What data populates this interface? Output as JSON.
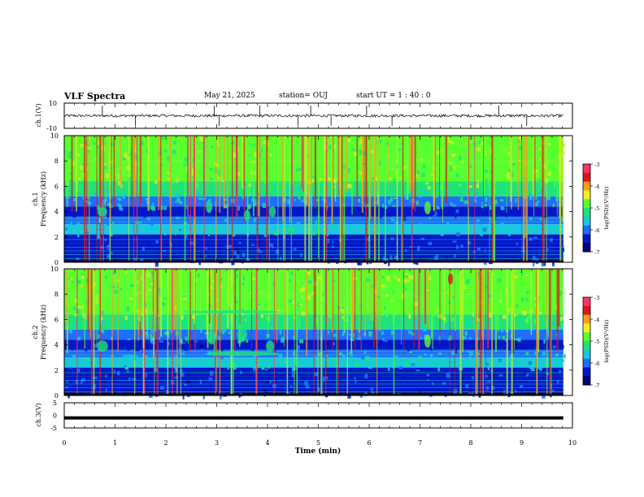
{
  "header": {
    "title": "VLF Spectra",
    "date": "May 21, 2025",
    "station": "station= OUJ",
    "start_ut": "start  UT =  1 : 40 : 0"
  },
  "colors": {
    "cmap": [
      "#00007a",
      "#0018c8",
      "#1e6eff",
      "#17c8e0",
      "#1ee37a",
      "#5aff2e",
      "#d6f020",
      "#ff9a1c",
      "#e01515",
      "#ff2a55"
    ],
    "line": "#000000",
    "background": "#ffffff"
  },
  "chart_data": [
    {
      "type": "line",
      "id": "ch1_waveform",
      "ylabel": "ch.1(V)",
      "ylim": [
        -10,
        10
      ],
      "yticks": [
        10,
        -10
      ],
      "xlim": [
        0,
        10
      ],
      "baseline": 0,
      "spikes_min": [
        0.75,
        1.4,
        2.95,
        3.05,
        3.85,
        4.6,
        4.85,
        5.25,
        5.95,
        6.45,
        8.55,
        9.1
      ]
    },
    {
      "type": "heatmap",
      "id": "ch1_spectrogram",
      "ylabel": "ch.1\nFrequency (kHz)",
      "ylim": [
        0,
        10
      ],
      "yticks": [
        0,
        2,
        4,
        6,
        8,
        10
      ],
      "xlim": [
        0,
        10
      ],
      "data_end_min": 9.82,
      "colorbar": {
        "label": "log(PSD)(V²/Hz)",
        "range": [
          -7,
          -3
        ],
        "ticks": [
          -3,
          -4,
          -5,
          -6,
          -7
        ]
      }
    },
    {
      "type": "heatmap",
      "id": "ch2_spectrogram",
      "ylabel": "ch.2\nFrequency (kHz)",
      "ylim": [
        0,
        10
      ],
      "yticks": [
        0,
        2,
        4,
        6,
        8,
        10
      ],
      "xlim": [
        0,
        10
      ],
      "data_end_min": 9.82,
      "colorbar": {
        "label": "log(PSD)(V²/Hz)",
        "range": [
          -7,
          -3
        ],
        "ticks": [
          -3,
          -4,
          -5,
          -6,
          -7
        ]
      }
    },
    {
      "type": "line",
      "id": "ch3_waveform",
      "ylabel": "ch.3(V)",
      "ylim": [
        -5,
        5
      ],
      "yticks": [
        5,
        0,
        -5
      ],
      "xlim": [
        0,
        10
      ],
      "level": -1.0
    }
  ],
  "xaxis": {
    "label": "Time (min)",
    "ticks": [
      0,
      1,
      2,
      3,
      4,
      5,
      6,
      7,
      8,
      9,
      10
    ]
  }
}
